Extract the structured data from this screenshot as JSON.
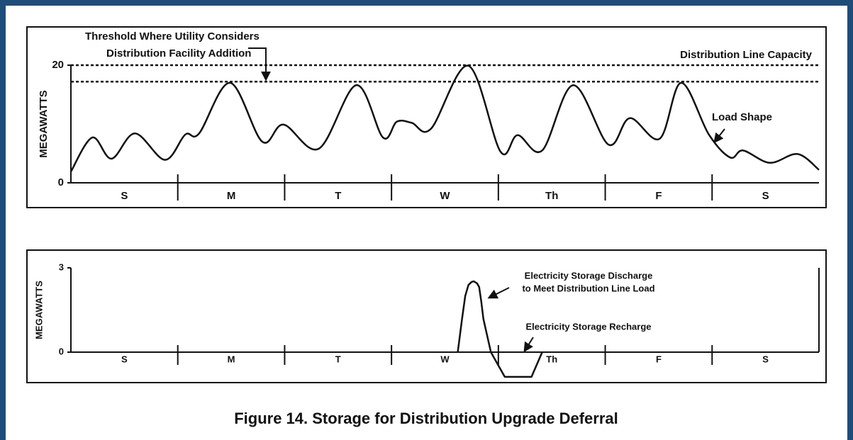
{
  "caption": "Figure 14. Storage for Distribution Upgrade Deferral",
  "chart_data": [
    {
      "type": "line",
      "y_label": "MEGAWATTS",
      "smooth": true,
      "categories": [
        "S",
        "M",
        "T",
        "W",
        "Th",
        "F",
        "S"
      ],
      "xlim": [
        0,
        7
      ],
      "ylim": [
        0,
        20
      ],
      "yticks": [
        0,
        20
      ],
      "x": [
        0,
        0.2,
        0.38,
        0.6,
        0.88,
        1.07,
        1.2,
        1.49,
        1.79,
        1.99,
        2.32,
        2.67,
        2.92,
        3.05,
        3.19,
        3.37,
        3.72,
        4.02,
        4.18,
        4.41,
        4.7,
        5.03,
        5.23,
        5.51,
        5.71,
        5.97,
        6.17,
        6.29,
        6.54,
        6.8,
        7.0
      ],
      "series": [
        {
          "name": "Load Shape",
          "color": "#111111",
          "values": [
            1.9,
            7.7,
            4.1,
            8.4,
            3.9,
            8.2,
            8.4,
            17.0,
            7.0,
            9.9,
            5.8,
            16.6,
            7.7,
            10.4,
            10.2,
            9.2,
            19.9,
            5.3,
            8.1,
            5.5,
            16.6,
            6.5,
            11.0,
            7.5,
            17.0,
            8.2,
            4.3,
            5.5,
            3.4,
            4.9,
            2.2
          ]
        }
      ],
      "reference_lines": [
        {
          "label": "Distribution Line Capacity",
          "value": 20
        },
        {
          "label": [
            "Threshold Where Utility Considers",
            "Distribution Facility Addition"
          ],
          "value": 17.2
        }
      ]
    },
    {
      "type": "line",
      "y_label": "MEGAWATTS",
      "smooth": false,
      "categories": [
        "S",
        "M",
        "T",
        "W",
        "Th",
        "F",
        "S"
      ],
      "xlim": [
        0,
        7
      ],
      "ylim": [
        0,
        3
      ],
      "yticks": [
        0,
        3
      ],
      "x": [
        3.62,
        3.66,
        3.69,
        3.72,
        3.75,
        3.77,
        3.8,
        3.82,
        3.84,
        3.86,
        3.93,
        4.06,
        4.31,
        4.41
      ],
      "series": [
        {
          "color": "#111111",
          "values": [
            0,
            1.18,
            2.0,
            2.39,
            2.5,
            2.52,
            2.45,
            2.32,
            1.8,
            1.18,
            0,
            -0.88,
            -0.88,
            0
          ]
        }
      ],
      "annotations": [
        [
          "Electricity Storage Discharge",
          "to Meet Distribution Line Load"
        ],
        [
          "Electricity Storage Recharge"
        ]
      ]
    }
  ]
}
